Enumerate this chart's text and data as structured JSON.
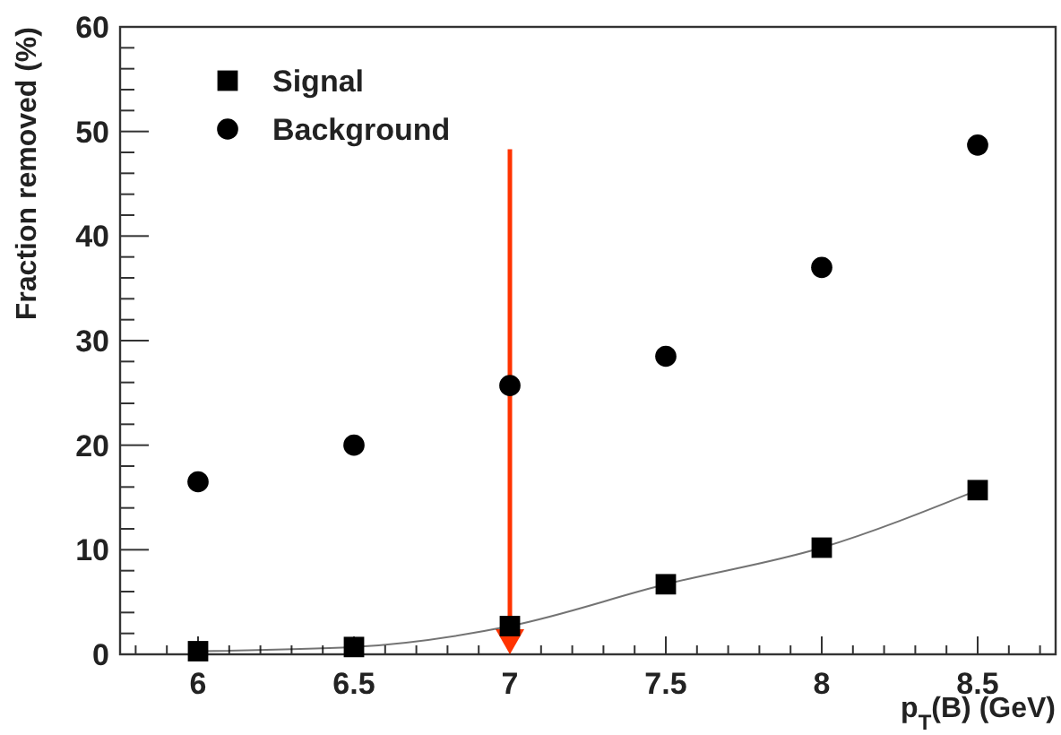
{
  "chart_data": {
    "type": "scatter",
    "xlabel": "p$_{T}$(B) (GeV)",
    "ylabel": "Fraction removed (%)",
    "x": [
      6,
      6.5,
      7,
      7.5,
      8,
      8.5
    ],
    "series": [
      {
        "name": "Signal",
        "type": "line",
        "color": "#000000",
        "marker": "square",
        "values": [
          0.3,
          0.7,
          2.7,
          6.7,
          10.2,
          15.7
        ]
      },
      {
        "name": "Background",
        "type": "scatter",
        "color": "#000000",
        "marker": "circle",
        "values": [
          16.5,
          20.0,
          25.7,
          28.5,
          37.0,
          48.7
        ]
      }
    ],
    "xlim": [
      5.75,
      8.75
    ],
    "ylim": [
      0,
      60
    ],
    "xticks": [
      6,
      6.5,
      7,
      7.5,
      8,
      8.5,
      {
        "value": 5.8,
        "label": null
      },
      {
        "value": 5.9,
        "label": null
      },
      {
        "value": 6.1,
        "label": null
      },
      {
        "value": 6.2,
        "label": null
      },
      {
        "value": 6.3,
        "label": null
      },
      {
        "value": 6.4,
        "label": null
      },
      {
        "value": 6.6,
        "label": null
      },
      {
        "value": 6.7,
        "label": null
      },
      {
        "value": 6.8,
        "label": null
      },
      {
        "value": 6.9,
        "label": null
      },
      {
        "value": 7.1,
        "label": null
      },
      {
        "value": 7.2,
        "label": null
      },
      {
        "value": 7.3,
        "label": null
      },
      {
        "value": 7.4,
        "label": null
      },
      {
        "value": 7.6,
        "label": null
      },
      {
        "value": 7.7,
        "label": null
      },
      {
        "value": 7.8,
        "label": null
      },
      {
        "value": 7.9,
        "label": null
      },
      {
        "value": 8.1,
        "label": null
      },
      {
        "value": 8.2,
        "label": null
      },
      {
        "value": 8.3,
        "label": null
      },
      {
        "value": 8.4,
        "label": null
      },
      {
        "value": 8.6,
        "label": null
      },
      {
        "value": 8.7,
        "label": null
      }
    ],
    "yticks": [
      0,
      10,
      20,
      30,
      40,
      50,
      60,
      {
        "value": 2,
        "label": null
      },
      {
        "value": 4,
        "label": null
      },
      {
        "value": 6,
        "label": null
      },
      {
        "value": 8,
        "label": null
      },
      {
        "value": 12,
        "label": null
      },
      {
        "value": 14,
        "label": null
      },
      {
        "value": 16,
        "label": null
      },
      {
        "value": 18,
        "label": null
      },
      {
        "value": 22,
        "label": null
      },
      {
        "value": 24,
        "label": null
      },
      {
        "value": 26,
        "label": null
      },
      {
        "value": 28,
        "label": null
      },
      {
        "value": 32,
        "label": null
      },
      {
        "value": 34,
        "label": null
      },
      {
        "value": 36,
        "label": null
      },
      {
        "value": 38,
        "label": null
      },
      {
        "value": 42,
        "label": null
      },
      {
        "value": 44,
        "label": null
      },
      {
        "value": 46,
        "label": null
      },
      {
        "value": 48,
        "label": null
      },
      {
        "value": 52,
        "label": null
      },
      {
        "value": 54,
        "label": null
      },
      {
        "value": 56,
        "label": null
      },
      {
        "value": 58,
        "label": null
      }
    ],
    "ref_lines": [
      {
        "axis": "x",
        "value": 7,
        "color": "#ff3300"
      }
    ],
    "legend": "top left",
    "grid": false
  }
}
